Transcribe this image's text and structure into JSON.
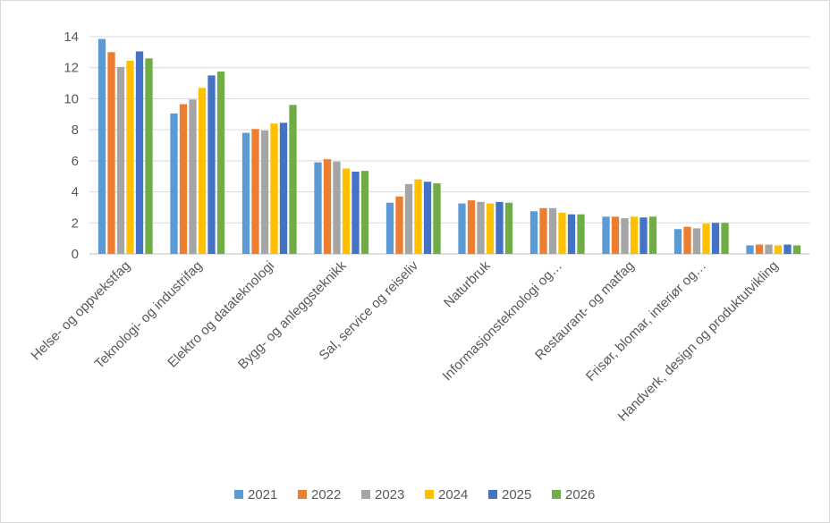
{
  "chart_data": {
    "type": "bar",
    "title": "",
    "xlabel": "",
    "ylabel": "",
    "ylim": [
      0,
      14
    ],
    "yticks": [
      "0",
      "2",
      "4",
      "6",
      "8",
      "10",
      "12",
      "14"
    ],
    "grid": true,
    "legend_position": "bottom",
    "categories": [
      "Helse- og oppvekstfag",
      "Teknologi- og industrifag",
      "Elektro og datateknologi",
      "Bygg- og anleggsteknikk",
      "Sal, service og reiseliv",
      "Naturbruk",
      "Informasjonsteknologi og…",
      "Restaurant- og matfag",
      "Frisør, blomar, interiør og…",
      "Handverk, design og produktutvikling"
    ],
    "series": [
      {
        "name": "2021",
        "color": "#5b9bd5",
        "values": [
          13.85,
          9.05,
          7.8,
          5.9,
          3.3,
          3.25,
          2.75,
          2.4,
          1.6,
          0.55
        ]
      },
      {
        "name": "2022",
        "color": "#ed7d31",
        "values": [
          13.0,
          9.65,
          8.05,
          6.1,
          3.7,
          3.45,
          2.95,
          2.4,
          1.75,
          0.6
        ]
      },
      {
        "name": "2023",
        "color": "#a5a5a5",
        "values": [
          12.05,
          9.95,
          7.95,
          5.95,
          4.5,
          3.35,
          2.95,
          2.3,
          1.65,
          0.6
        ]
      },
      {
        "name": "2024",
        "color": "#ffc000",
        "values": [
          12.45,
          10.7,
          8.4,
          5.5,
          4.8,
          3.25,
          2.65,
          2.4,
          1.95,
          0.55
        ]
      },
      {
        "name": "2025",
        "color": "#4472c4",
        "values": [
          13.05,
          11.5,
          8.45,
          5.3,
          4.65,
          3.35,
          2.55,
          2.35,
          2.0,
          0.6
        ]
      },
      {
        "name": "2026",
        "color": "#70ad47",
        "values": [
          12.6,
          11.75,
          9.6,
          5.35,
          4.55,
          3.3,
          2.55,
          2.4,
          2.0,
          0.55
        ]
      }
    ]
  }
}
